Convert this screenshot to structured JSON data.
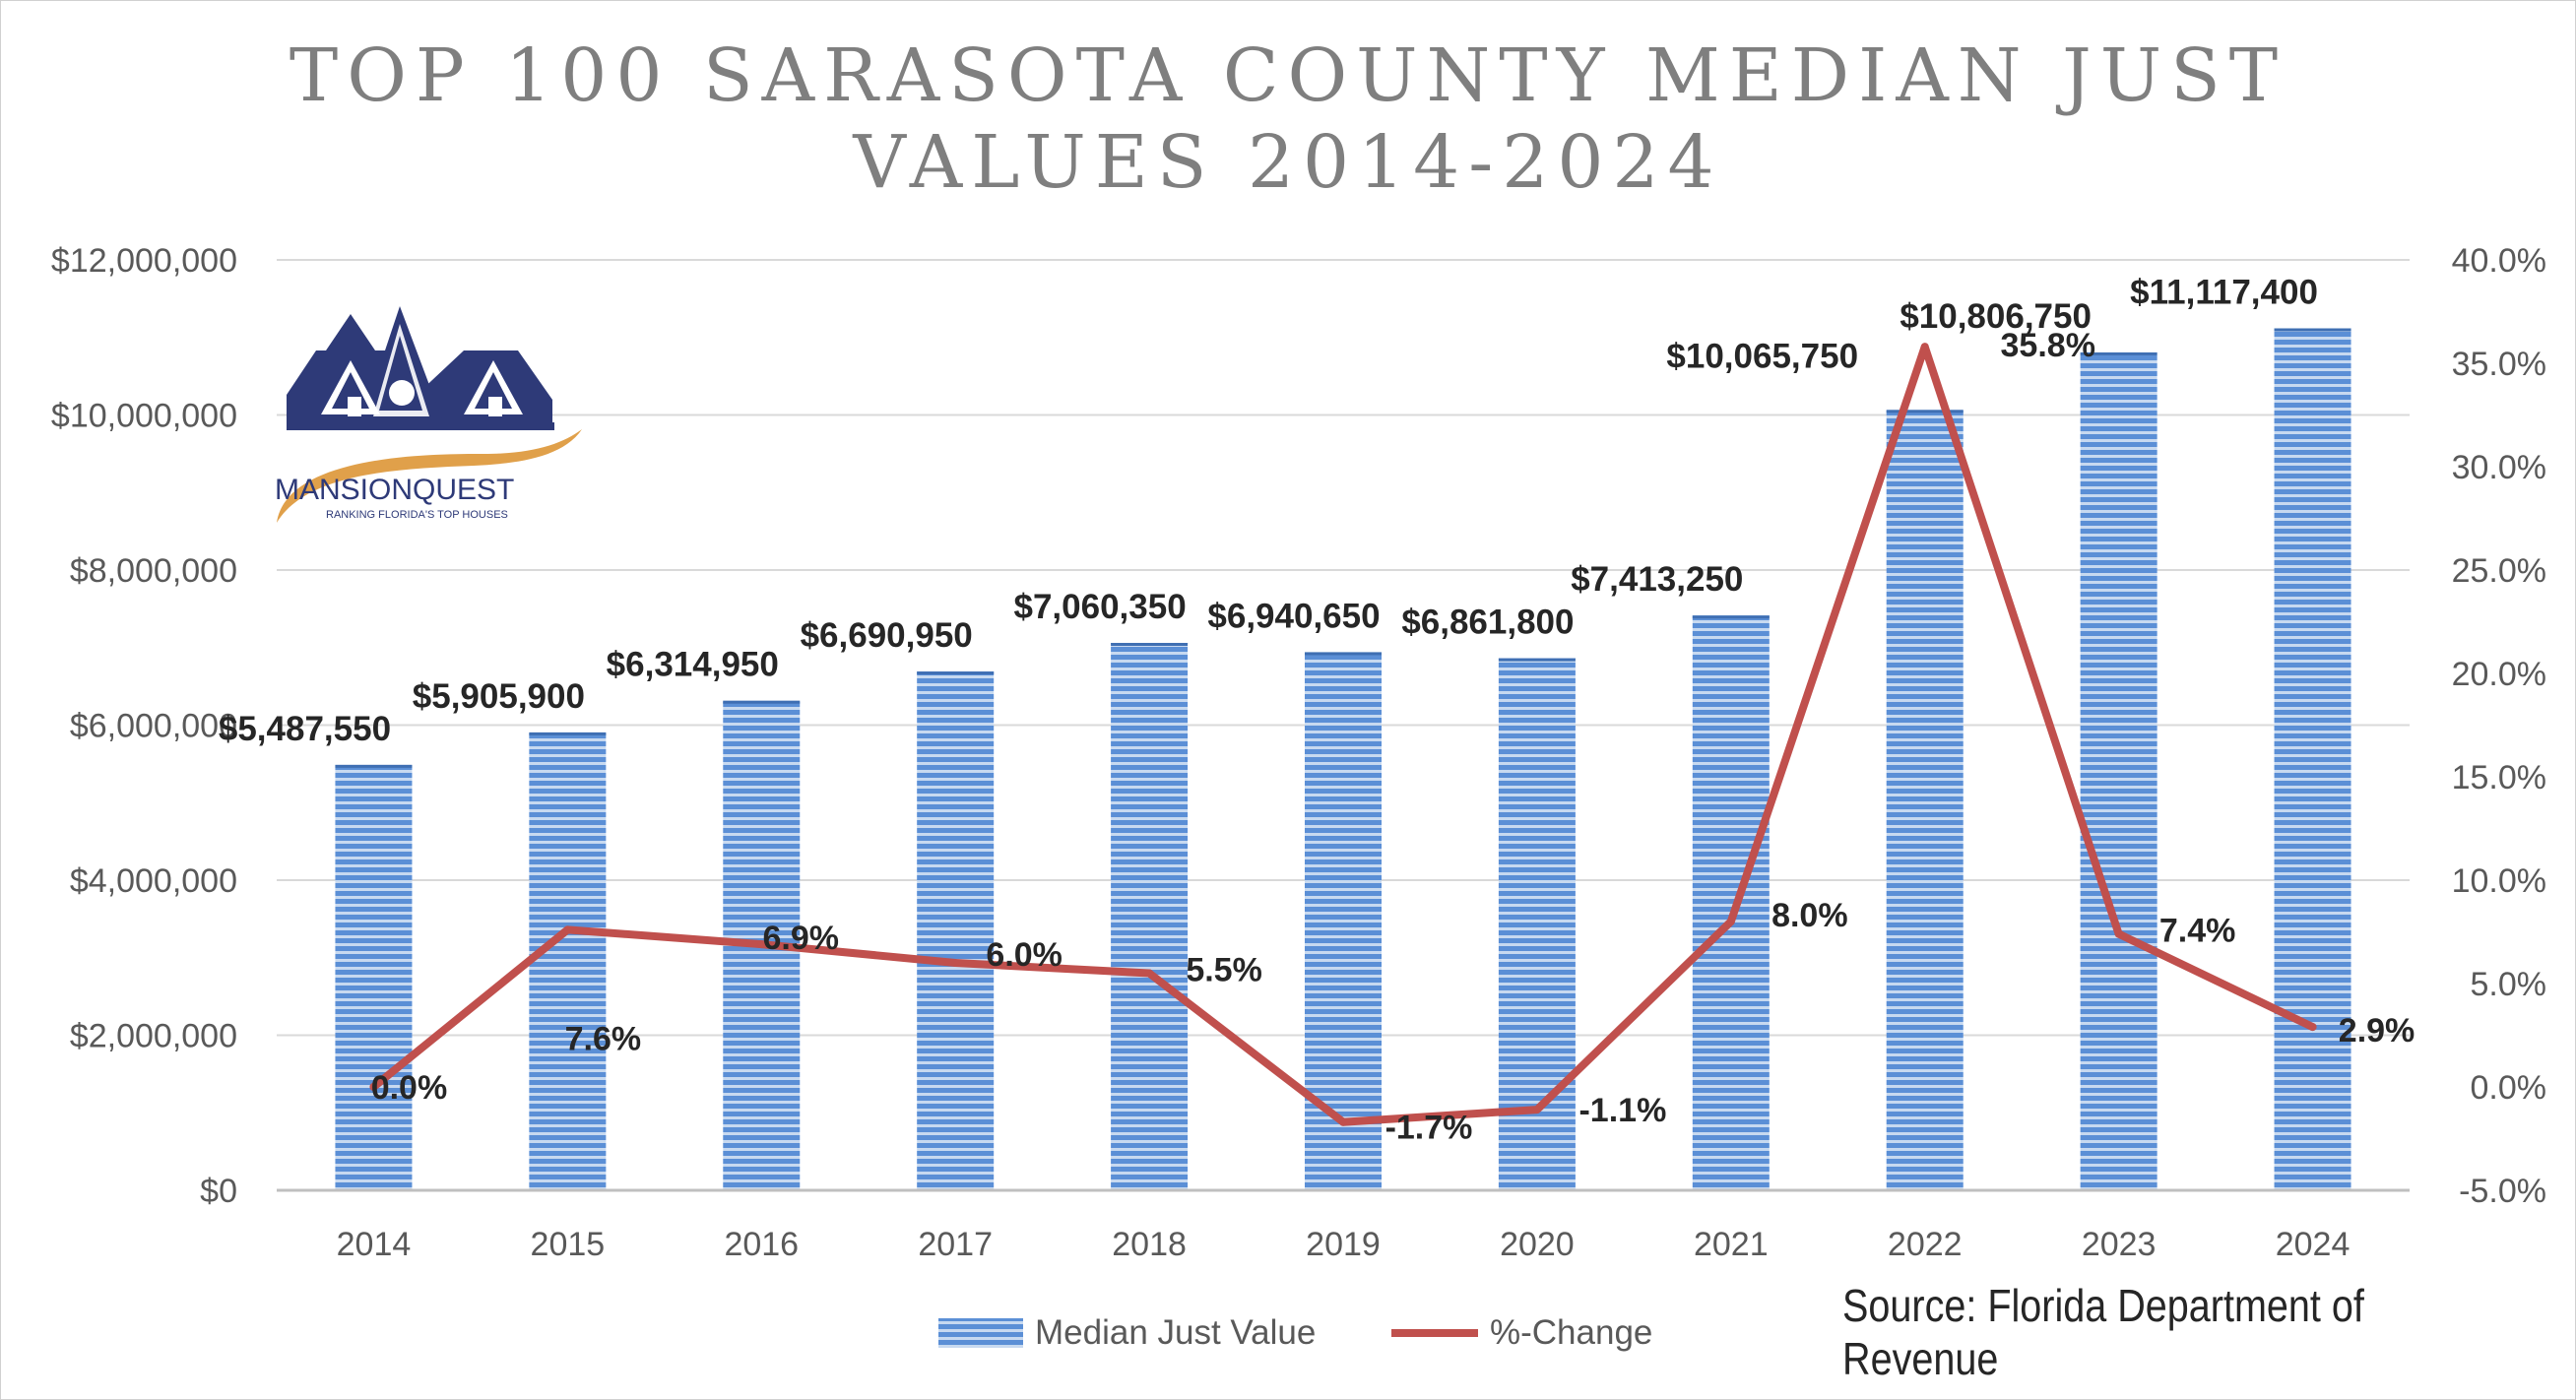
{
  "title_line_1": "TOP 100 SARASOTA COUNTY MEDIAN JUST",
  "title_line_2": "VALUES 2014-2024",
  "source": "Source: Florida Department of Revenue",
  "logo": {
    "text": "MANSIONQUEST",
    "tagline": "RANKING FLORIDA'S TOP HOUSES"
  },
  "colors": {
    "bar": "#5b8fd6",
    "bar_stripe": "#c7d9f0",
    "line": "#c0504d",
    "grid": "#d9d9d9",
    "axis_text": "#595959",
    "label_text": "#262626",
    "logo_navy": "#2e3a78",
    "logo_gold": "#e0a04a"
  },
  "chart_data": {
    "type": "bar+line",
    "categories": [
      "2014",
      "2015",
      "2016",
      "2017",
      "2018",
      "2019",
      "2020",
      "2021",
      "2022",
      "2023",
      "2024"
    ],
    "series": [
      {
        "name": "Median Just Value",
        "type": "bar",
        "axis": "left",
        "values": [
          5487550,
          5905900,
          6314950,
          6690950,
          7060350,
          6940650,
          6861800,
          7413250,
          10065750,
          10806750,
          11117400
        ],
        "labels": [
          "$5,487,550",
          "$5,905,900",
          "$6,314,950",
          "$6,690,950",
          "$7,060,350",
          "$6,940,650",
          "$6,861,800",
          "$7,413,250",
          "$10,065,750",
          "$10,806,750",
          "$11,117,400"
        ]
      },
      {
        "name": "%-Change",
        "type": "line",
        "axis": "right",
        "values": [
          0.0,
          7.6,
          6.9,
          6.0,
          5.5,
          -1.7,
          -1.1,
          8.0,
          35.8,
          7.4,
          2.9
        ],
        "labels": [
          "0.0%",
          "7.6%",
          "6.9%",
          "6.0%",
          "5.5%",
          "-1.7%",
          "-1.1%",
          "8.0%",
          "35.8%",
          "7.4%",
          "2.9%"
        ]
      }
    ],
    "y_left": {
      "min": 0,
      "max": 12000000,
      "ticks": [
        "$0",
        "$2,000,000",
        "$4,000,000",
        "$6,000,000",
        "$8,000,000",
        "$10,000,000",
        "$12,000,000"
      ]
    },
    "y_right": {
      "min": -5,
      "max": 40,
      "ticks": [
        "-5.0%",
        "0.0%",
        "5.0%",
        "10.0%",
        "15.0%",
        "20.0%",
        "25.0%",
        "30.0%",
        "35.0%",
        "40.0%"
      ]
    },
    "grid": true,
    "legend_position": "bottom"
  }
}
